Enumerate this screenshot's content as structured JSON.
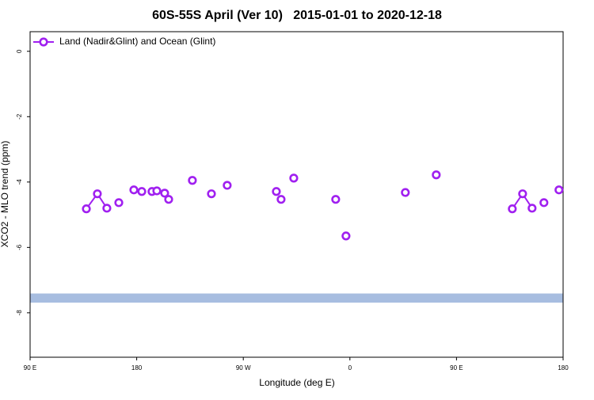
{
  "chart_data": {
    "type": "line",
    "title": "60S-55S April (Ver 10)   2015-01-01 to 2020-12-18",
    "x_label": "Longitude (deg E)",
    "y_label": "XCO2 - MLO trend (ppm)",
    "xlim": [
      90,
      540
    ],
    "xticks": [
      {
        "value": 90,
        "label": "90 E"
      },
      {
        "value": 180,
        "label": "180"
      },
      {
        "value": 270,
        "label": "90 W"
      },
      {
        "value": 360,
        "label": "0"
      },
      {
        "value": 450,
        "label": "90 E"
      },
      {
        "value": 540,
        "label": "180"
      }
    ],
    "ylim": [
      -9.36,
      0.6
    ],
    "yticks": [
      0,
      -2,
      -4,
      -6,
      -8
    ],
    "reference_band": [
      -7.69,
      -7.41
    ],
    "reference_band_color": "#a7bde0",
    "legend": "top-left",
    "series": [
      {
        "name": "Land (Nadir&Glint) and Ocean (Glint)",
        "color": "#a020f0",
        "x": [
          137.5,
          146.8,
          154.8,
          null,
          164.9,
          null,
          177.6,
          null,
          184.3,
          null,
          192.9,
          null,
          197.0,
          null,
          203.6,
          null,
          207.0,
          null,
          227.0,
          null,
          243.1,
          null,
          256.4,
          null,
          297.9,
          null,
          301.9,
          null,
          312.6,
          null,
          348.0,
          null,
          356.7,
          null,
          406.8,
          null,
          432.9,
          null,
          497.1,
          505.8,
          513.8,
          null,
          523.8,
          null,
          536.5
        ],
        "values": [
          -4.82,
          -4.36,
          -4.8,
          null,
          -4.63,
          null,
          -4.24,
          null,
          -4.29,
          null,
          -4.29,
          null,
          -4.27,
          null,
          -4.34,
          null,
          -4.53,
          null,
          -3.95,
          null,
          -4.36,
          null,
          -4.1,
          null,
          -4.29,
          null,
          -4.53,
          null,
          -3.88,
          null,
          -4.53,
          null,
          -5.65,
          null,
          -4.32,
          null,
          -3.78,
          null,
          -4.82,
          -4.36,
          -4.8,
          null,
          -4.63,
          null,
          -4.24
        ]
      }
    ]
  }
}
